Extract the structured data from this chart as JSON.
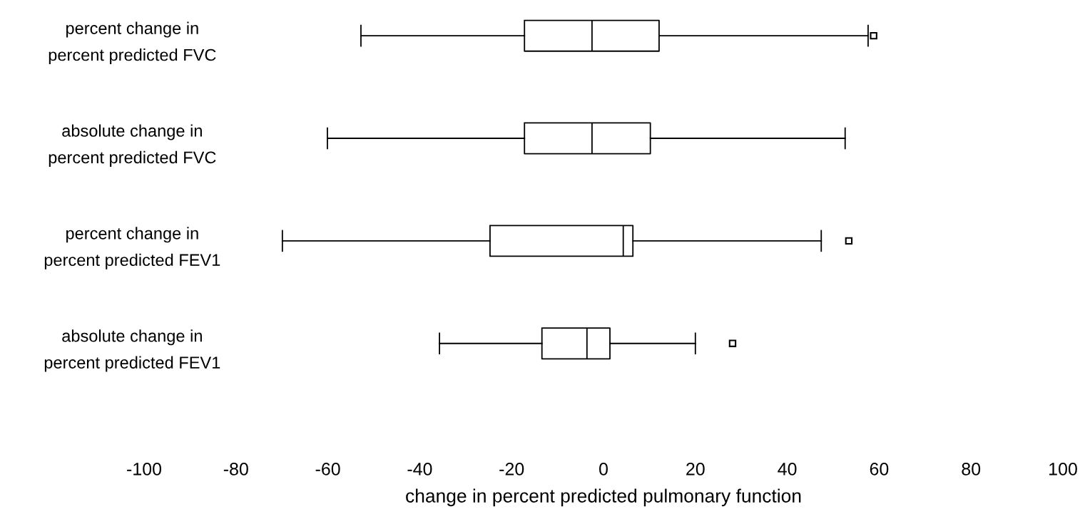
{
  "chart_data": {
    "type": "box",
    "orientation": "horizontal",
    "xlabel": "change in percent predicted pulmonary function",
    "categories": [
      "percent change in\npercent predicted FVC",
      "absolute change in\npercent predicted FVC",
      "percent change in\npercent predicted FEV1",
      "absolute change in\npercent predicted FEV1"
    ],
    "boxes": [
      {
        "low": -52.8,
        "q1": -17.2,
        "median": -2.5,
        "q3": 12.1,
        "high": 57.6,
        "outliers": [
          58.8
        ]
      },
      {
        "low": -60.1,
        "q1": -17.2,
        "median": -2.5,
        "q3": 10.2,
        "high": 52.6
      },
      {
        "low": -69.9,
        "q1": -24.7,
        "median": 4.3,
        "q3": 6.4,
        "high": 47.4,
        "outliers": [
          53.4
        ]
      },
      {
        "low": -35.7,
        "q1": -13.4,
        "median": -3.6,
        "q3": 1.4,
        "high": 20.0,
        "outliers": [
          28.1
        ]
      }
    ],
    "color": "#000000",
    "marker": "square",
    "xlim": [
      -100,
      100
    ],
    "xticks": [
      -100,
      -80,
      -60,
      -40,
      -20,
      0,
      20,
      40,
      60,
      80,
      100
    ],
    "grid": false
  }
}
